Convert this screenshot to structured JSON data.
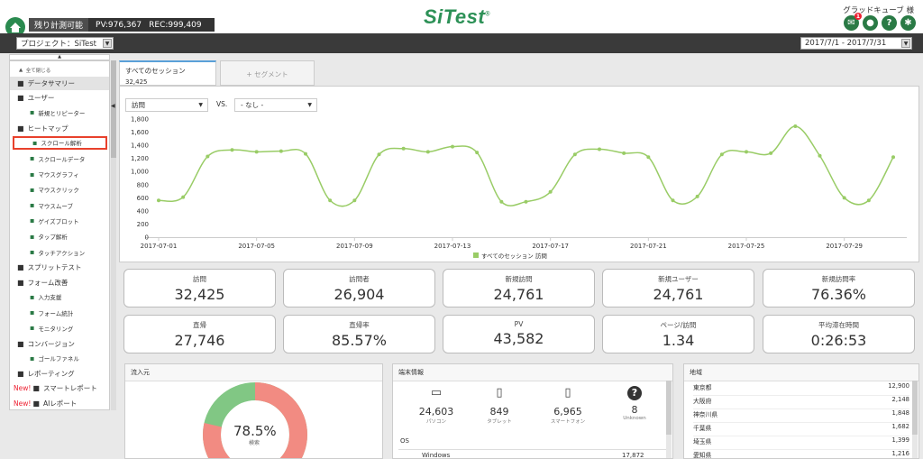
{
  "header": {
    "quota_label": "残り計測可能",
    "pv": "PV:976,367",
    "rec": "REC:999,409",
    "logo": "SiTest",
    "user": "グラッドキューブ 様",
    "notification_count": "1",
    "help_glyph": "?"
  },
  "subbar": {
    "project": "プロジェクト：SiTest",
    "date_range": "2017/7/1 - 2017/7/31"
  },
  "sidebar": {
    "collapse_all": "全て閉じる",
    "items": [
      {
        "label": "データサマリー",
        "type": "cat",
        "icon": "book-icon"
      },
      {
        "label": "ユーザー",
        "type": "cat",
        "icon": "user-icon"
      },
      {
        "label": "新規とリピーター",
        "type": "sub",
        "icon": "user-icon"
      },
      {
        "label": "ヒートマップ",
        "type": "cat",
        "icon": "heatmap-icon"
      },
      {
        "label": "スクロール解析",
        "type": "sub",
        "icon": "scroll-analysis-icon"
      },
      {
        "label": "スクロールデータ",
        "type": "sub",
        "icon": "scroll-data-icon"
      },
      {
        "label": "マウスグラフィ",
        "type": "sub",
        "icon": "mouse-graphic-icon"
      },
      {
        "label": "マウスクリック",
        "type": "sub",
        "icon": "mouse-click-icon"
      },
      {
        "label": "マウスムーブ",
        "type": "sub",
        "icon": "mouse-move-icon"
      },
      {
        "label": "ゲイズプロット",
        "type": "sub",
        "icon": "gaze-plot-icon"
      },
      {
        "label": "タップ解析",
        "type": "sub",
        "icon": "tap-icon"
      },
      {
        "label": "タッチアクション",
        "type": "sub",
        "icon": "touch-icon"
      },
      {
        "label": "スプリットテスト",
        "type": "cat",
        "icon": "toggle-icon"
      },
      {
        "label": "フォーム改善",
        "type": "cat",
        "icon": "form-icon"
      },
      {
        "label": "入力支援",
        "type": "sub",
        "icon": "input-icon"
      },
      {
        "label": "フォーム統計",
        "type": "sub",
        "icon": "form-stats-icon"
      },
      {
        "label": "モニタリング",
        "type": "sub",
        "icon": "monitor-icon"
      },
      {
        "label": "コンバージョン",
        "type": "cat",
        "icon": "handshake-icon"
      },
      {
        "label": "ゴールファネル",
        "type": "sub",
        "icon": "funnel-icon"
      },
      {
        "label": "レポーティング",
        "type": "cat",
        "icon": "report-icon"
      },
      {
        "label": "スマートレポート",
        "type": "cat",
        "icon": "smart-report-icon",
        "new": "New!"
      },
      {
        "label": "AIレポート",
        "type": "cat",
        "icon": "ai-icon",
        "new": "New!"
      }
    ]
  },
  "tabs": {
    "active_label": "すべてのセッション",
    "active_value": "32,425",
    "add_segment": "+ セグメント"
  },
  "chart_controls": {
    "metric": "訪問",
    "vs": "VS.",
    "compare": "- なし -"
  },
  "chart_data": {
    "type": "line",
    "x": [
      "2017-07-01",
      "2017-07-02",
      "2017-07-03",
      "2017-07-04",
      "2017-07-05",
      "2017-07-06",
      "2017-07-07",
      "2017-07-08",
      "2017-07-09",
      "2017-07-10",
      "2017-07-11",
      "2017-07-12",
      "2017-07-13",
      "2017-07-14",
      "2017-07-15",
      "2017-07-16",
      "2017-07-17",
      "2017-07-18",
      "2017-07-19",
      "2017-07-20",
      "2017-07-21",
      "2017-07-22",
      "2017-07-23",
      "2017-07-24",
      "2017-07-25",
      "2017-07-26",
      "2017-07-27",
      "2017-07-28",
      "2017-07-29",
      "2017-07-30",
      "2017-07-31"
    ],
    "x_tick_labels": [
      "2017-07-01",
      "2017-07-05",
      "2017-07-09",
      "2017-07-13",
      "2017-07-17",
      "2017-07-21",
      "2017-07-25",
      "2017-07-29"
    ],
    "x_tick_indices": [
      0,
      4,
      8,
      12,
      16,
      20,
      24,
      28
    ],
    "series": [
      {
        "name": "すべてのセッション 訪問",
        "color": "#99cc66",
        "values": [
          560,
          610,
          1230,
          1330,
          1300,
          1310,
          1270,
          560,
          560,
          1260,
          1350,
          1300,
          1380,
          1290,
          540,
          540,
          690,
          1260,
          1340,
          1280,
          1220,
          560,
          620,
          1260,
          1300,
          1280,
          1690,
          1240,
          600,
          560,
          1220
        ]
      }
    ],
    "ylim": [
      0,
      1800
    ],
    "y_ticks": [
      0,
      200,
      400,
      600,
      800,
      1000,
      1200,
      1400,
      1600,
      1800
    ],
    "y_tick_labels": [
      "0",
      "200",
      "400",
      "600",
      "800",
      "1,000",
      "1,200",
      "1,400",
      "1,600",
      "1,800"
    ],
    "grid": false,
    "legend": "bottom-center"
  },
  "kpis": [
    {
      "label": "訪問",
      "value": "32,425"
    },
    {
      "label": "訪問者",
      "value": "26,904"
    },
    {
      "label": "新規訪問",
      "value": "24,761"
    },
    {
      "label": "新規ユーザー",
      "value": "24,761"
    },
    {
      "label": "新規訪問率",
      "value": "76.36%"
    },
    {
      "label": "直帰",
      "value": "27,746"
    },
    {
      "label": "直帰率",
      "value": "85.57%"
    },
    {
      "label": "PV",
      "value": "43,582"
    },
    {
      "label": "ページ/訪問",
      "value": "1.34"
    },
    {
      "label": "平均滞在時間",
      "value": "0:26:53"
    }
  ],
  "traffic": {
    "title": "流入元",
    "donut_percent": "78.5%",
    "donut_label": "検索",
    "share": 0.785,
    "colors": {
      "search": "#f28b82",
      "other": "#81c784"
    }
  },
  "devices": {
    "title": "端末情報",
    "items": [
      {
        "value": "24,603",
        "label": "パソコン",
        "icon": "monitor-icon"
      },
      {
        "value": "849",
        "label": "タブレット",
        "icon": "tablet-icon"
      },
      {
        "value": "6,965",
        "label": "スマートフォン",
        "icon": "smartphone-icon"
      },
      {
        "value": "8",
        "label": "Unknown",
        "icon": "unknown-icon"
      }
    ],
    "os_title": "OS",
    "os_rows": [
      {
        "name": "Windows",
        "value": "17,872"
      }
    ]
  },
  "regions": {
    "title": "地域",
    "rows": [
      {
        "name": "東京都",
        "value": "12,900"
      },
      {
        "name": "大阪府",
        "value": "2,148"
      },
      {
        "name": "神奈川県",
        "value": "1,848"
      },
      {
        "name": "千葉県",
        "value": "1,682"
      },
      {
        "name": "埼玉県",
        "value": "1,399"
      },
      {
        "name": "愛知県",
        "value": "1,216"
      }
    ]
  }
}
